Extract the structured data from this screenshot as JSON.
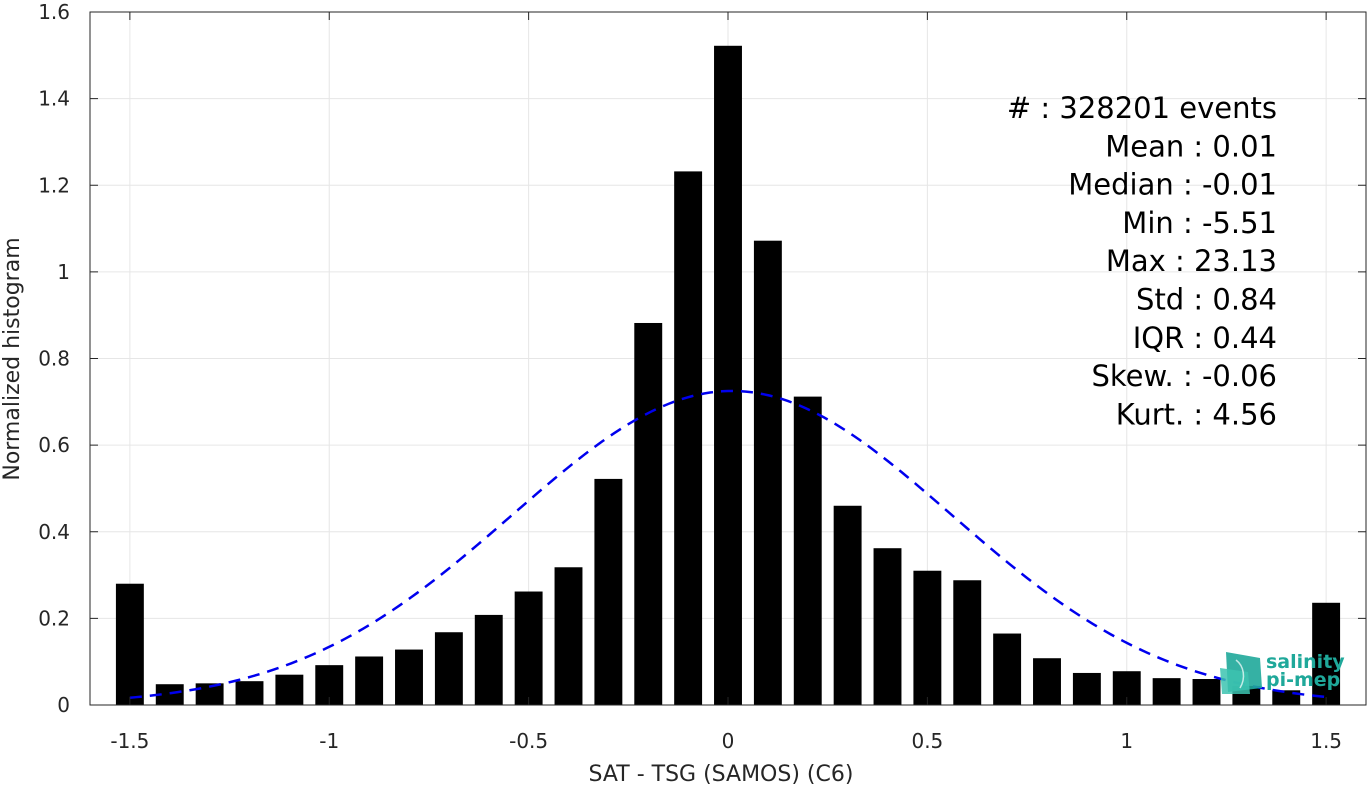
{
  "chart_data": {
    "type": "bar",
    "xlabel": "SAT - TSG (SAMOS) (C6)",
    "ylabel": "Normalized histogram",
    "xlim": [
      -1.6,
      1.6
    ],
    "ylim": [
      0,
      1.6
    ],
    "xticks": [
      -1.5,
      -1,
      -0.5,
      0,
      0.5,
      1,
      1.5
    ],
    "xtick_labels": [
      "-1.5",
      "-1",
      "-0.5",
      "0",
      "0.5",
      "1",
      "1.5"
    ],
    "yticks": [
      0,
      0.2,
      0.4,
      0.6,
      0.8,
      1,
      1.2,
      1.4,
      1.6
    ],
    "ytick_labels": [
      "0",
      "0.2",
      "0.4",
      "0.6",
      "0.8",
      "1",
      "1.2",
      "1.4",
      "1.6"
    ],
    "grid": true,
    "bar_color": "#000000",
    "bin_width": 0.1,
    "x": [
      -1.5,
      -1.4,
      -1.3,
      -1.2,
      -1.1,
      -1.0,
      -0.9,
      -0.8,
      -0.7,
      -0.6,
      -0.5,
      -0.4,
      -0.3,
      -0.2,
      -0.1,
      0.0,
      0.1,
      0.2,
      0.3,
      0.4,
      0.5,
      0.6,
      0.7,
      0.8,
      0.9,
      1.0,
      1.1,
      1.2,
      1.3,
      1.4,
      1.5
    ],
    "values": [
      0.28,
      0.048,
      0.05,
      0.055,
      0.07,
      0.092,
      0.112,
      0.128,
      0.168,
      0.208,
      0.262,
      0.318,
      0.522,
      0.882,
      1.232,
      1.522,
      1.072,
      0.712,
      0.46,
      0.362,
      0.31,
      0.288,
      0.165,
      0.108,
      0.074,
      0.078,
      0.062,
      0.06,
      0.044,
      0.034,
      0.236
    ],
    "fit": {
      "type": "gaussian",
      "mean": 0.01,
      "std": 0.55,
      "peak": 0.725,
      "color": "#0000ee",
      "style": "dashed",
      "xrange": [
        -1.5,
        1.5
      ]
    },
    "annotations": [
      "#  : 328201 events",
      "Mean : 0.01",
      "Median : -0.01",
      "Min : -5.51",
      "Max : 23.13",
      "Std : 0.84",
      "IQR : 0.44",
      "Skew. : -0.06",
      "Kurt. : 4.56"
    ],
    "annotation_placement": "top-right"
  },
  "logo": {
    "line1": "salinity",
    "line2": "pi-mep",
    "icon": "salinity-pimep-logo-icon",
    "color": "#1fa89a"
  }
}
